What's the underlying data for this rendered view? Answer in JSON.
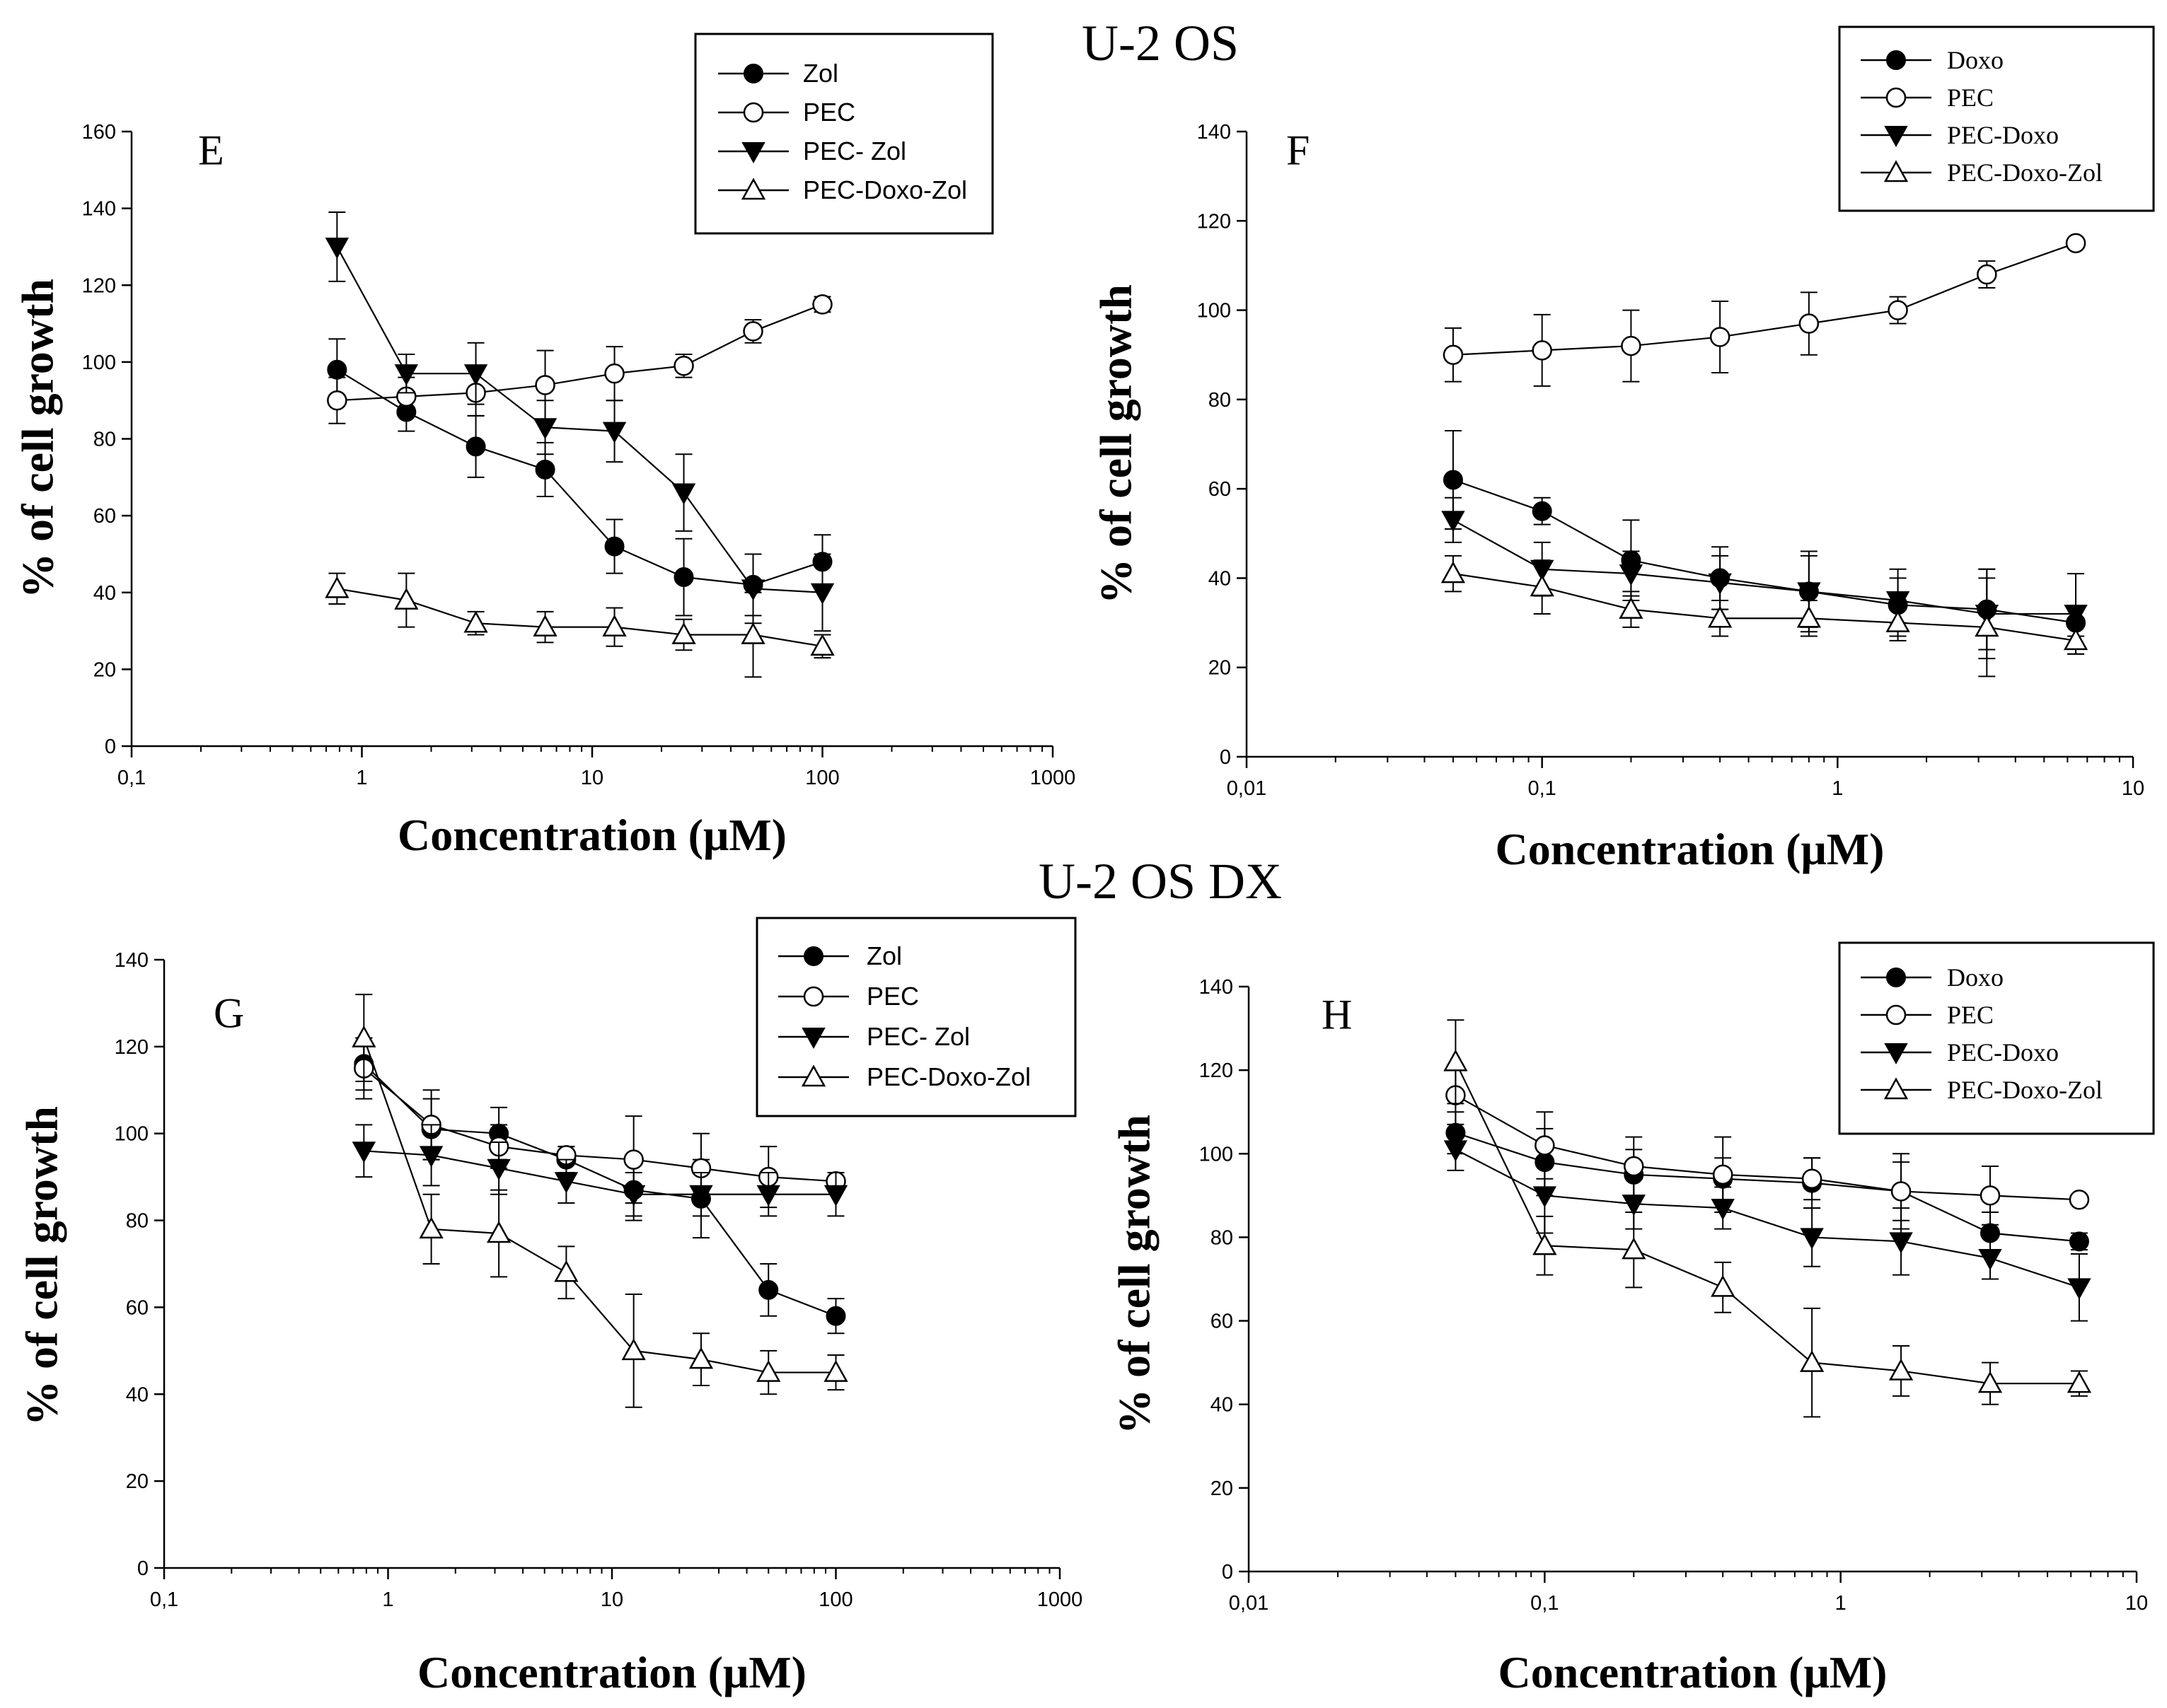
{
  "titles": {
    "top": "U-2 OS",
    "bottom": "U-2 OS DX"
  },
  "chart_data": [
    {
      "id": "E",
      "type": "line",
      "panel_label": "E",
      "xscale": "log",
      "xlabel": "Concentration (μM)",
      "ylabel": "% of cell growth",
      "xlim": [
        0.1,
        1000
      ],
      "ylim": [
        0,
        160
      ],
      "xticks": [
        0.1,
        1,
        10,
        100,
        1000
      ],
      "xtick_labels": [
        "0,1",
        "1",
        "10",
        "100",
        "1000"
      ],
      "yticks": [
        0,
        20,
        40,
        60,
        80,
        100,
        120,
        140,
        160
      ],
      "ytick_labels": [
        "0",
        "20",
        "40",
        "60",
        "80",
        "100",
        "120",
        "140",
        "160"
      ],
      "legend_position": "top-center",
      "legend_style": "sans",
      "series": [
        {
          "name": "Zol",
          "marker": "circle-filled",
          "x": [
            0.78,
            1.56,
            3.125,
            6.25,
            12.5,
            25,
            50,
            100
          ],
          "y": [
            98,
            87,
            78,
            72,
            52,
            44,
            42,
            48
          ],
          "err": [
            8,
            5,
            8,
            7,
            7,
            10,
            8,
            7
          ]
        },
        {
          "name": "PEC",
          "marker": "circle-open",
          "x": [
            0.78,
            1.56,
            3.125,
            6.25,
            12.5,
            25,
            50,
            100
          ],
          "y": [
            90,
            91,
            92,
            94,
            97,
            99,
            108,
            115
          ],
          "err": [
            6,
            5,
            6,
            9,
            7,
            3,
            3,
            2
          ]
        },
        {
          "name": "PEC- Zol",
          "marker": "triangle-down-filled",
          "x": [
            0.78,
            1.56,
            3.125,
            6.25,
            12.5,
            25,
            50,
            100
          ],
          "y": [
            130,
            97,
            97,
            83,
            82,
            66,
            41,
            40
          ],
          "err": [
            9,
            5,
            8,
            7,
            8,
            10,
            9,
            10
          ]
        },
        {
          "name": "PEC-Doxo-Zol",
          "marker": "triangle-up-open",
          "x": [
            0.78,
            1.56,
            3.125,
            6.25,
            12.5,
            25,
            50,
            100
          ],
          "y": [
            41,
            38,
            32,
            31,
            31,
            29,
            29,
            26
          ],
          "err": [
            4,
            7,
            3,
            4,
            5,
            4,
            11,
            3
          ]
        }
      ]
    },
    {
      "id": "F",
      "type": "line",
      "panel_label": "F",
      "xscale": "log",
      "xlabel": "Concentration (μM)",
      "ylabel": "% of cell growth",
      "xlim": [
        0.01,
        10
      ],
      "ylim": [
        0,
        140
      ],
      "xticks": [
        0.01,
        0.1,
        1,
        10
      ],
      "xtick_labels": [
        "0,01",
        "0,1",
        "1",
        "10"
      ],
      "yticks": [
        0,
        20,
        40,
        60,
        80,
        100,
        120,
        140
      ],
      "ytick_labels": [
        "0",
        "20",
        "40",
        "60",
        "80",
        "100",
        "120",
        "140"
      ],
      "legend_position": "top-right",
      "legend_style": "serif",
      "series": [
        {
          "name": "Doxo",
          "marker": "circle-filled",
          "x": [
            0.05,
            0.1,
            0.2,
            0.4,
            0.8,
            1.6,
            3.2,
            6.4
          ],
          "y": [
            62,
            55,
            44,
            40,
            37,
            34,
            33,
            30
          ],
          "err": [
            11,
            3,
            9,
            7,
            9,
            8,
            9,
            3
          ]
        },
        {
          "name": "PEC",
          "marker": "circle-open",
          "x": [
            0.05,
            0.1,
            0.2,
            0.4,
            0.8,
            1.6,
            3.2,
            6.4
          ],
          "y": [
            90,
            91,
            92,
            94,
            97,
            100,
            108,
            115
          ],
          "err": [
            6,
            8,
            8,
            8,
            7,
            3,
            3,
            1
          ]
        },
        {
          "name": "PEC-Doxo",
          "marker": "triangle-down-filled",
          "x": [
            0.05,
            0.1,
            0.2,
            0.4,
            0.8,
            1.6,
            3.2,
            6.4
          ],
          "y": [
            53,
            42,
            41,
            39,
            37,
            35,
            32,
            32
          ],
          "err": [
            5,
            6,
            5,
            6,
            8,
            5,
            10,
            9
          ]
        },
        {
          "name": "PEC-Doxo-Zol",
          "marker": "triangle-up-open",
          "x": [
            0.05,
            0.1,
            0.2,
            0.4,
            0.8,
            1.6,
            3.2,
            6.4
          ],
          "y": [
            41,
            38,
            33,
            31,
            31,
            30,
            29,
            26
          ],
          "err": [
            4,
            6,
            4,
            4,
            4,
            3,
            11,
            3
          ]
        }
      ]
    },
    {
      "id": "G",
      "type": "line",
      "panel_label": "G",
      "xscale": "log",
      "xlabel": "Concentration (μM)",
      "ylabel": "% of cell growth",
      "xlim": [
        0.1,
        1000
      ],
      "ylim": [
        0,
        140
      ],
      "xticks": [
        0.1,
        1,
        10,
        100,
        1000
      ],
      "xtick_labels": [
        "0,1",
        "1",
        "10",
        "100",
        "1000"
      ],
      "yticks": [
        0,
        20,
        40,
        60,
        80,
        100,
        120,
        140
      ],
      "ytick_labels": [
        "0",
        "20",
        "40",
        "60",
        "80",
        "100",
        "120",
        "140"
      ],
      "legend_position": "top-right",
      "legend_style": "sans",
      "series": [
        {
          "name": "Zol",
          "marker": "circle-filled",
          "x": [
            0.78,
            1.56,
            3.125,
            6.25,
            12.5,
            25,
            50,
            100
          ],
          "y": [
            116,
            101,
            100,
            94,
            87,
            85,
            64,
            58
          ],
          "err": [
            6,
            7,
            6,
            3,
            7,
            9,
            6,
            4
          ]
        },
        {
          "name": "PEC",
          "marker": "circle-open",
          "x": [
            0.78,
            1.56,
            3.125,
            6.25,
            12.5,
            25,
            50,
            100
          ],
          "y": [
            115,
            102,
            97,
            95,
            94,
            92,
            90,
            89
          ],
          "err": [
            7,
            8,
            5,
            2,
            10,
            8,
            7,
            2
          ]
        },
        {
          "name": "PEC- Zol",
          "marker": "triangle-down-filled",
          "x": [
            0.78,
            1.56,
            3.125,
            6.25,
            12.5,
            25,
            50,
            100
          ],
          "y": [
            96,
            95,
            92,
            89,
            86,
            86,
            86,
            86
          ],
          "err": [
            6,
            7,
            6,
            5,
            5,
            5,
            5,
            5
          ]
        },
        {
          "name": "PEC-Doxo-Zol",
          "marker": "triangle-up-open",
          "x": [
            0.78,
            1.56,
            3.125,
            6.25,
            12.5,
            25,
            50,
            100
          ],
          "y": [
            122,
            78,
            77,
            68,
            50,
            48,
            45,
            45
          ],
          "err": [
            10,
            8,
            10,
            6,
            13,
            6,
            5,
            4
          ]
        }
      ]
    },
    {
      "id": "H",
      "type": "line",
      "panel_label": "H",
      "xscale": "log",
      "xlabel": "Concentration (μM)",
      "ylabel": "% of cell growth",
      "xlim": [
        0.01,
        10
      ],
      "ylim": [
        0,
        140
      ],
      "xticks": [
        0.01,
        0.1,
        1,
        10
      ],
      "xtick_labels": [
        "0,01",
        "0,1",
        "1",
        "10"
      ],
      "yticks": [
        0,
        20,
        40,
        60,
        80,
        100,
        120,
        140
      ],
      "ytick_labels": [
        "0",
        "20",
        "40",
        "60",
        "80",
        "100",
        "120",
        "140"
      ],
      "legend_position": "top-right",
      "legend_style": "serif",
      "series": [
        {
          "name": "Doxo",
          "marker": "circle-filled",
          "x": [
            0.05,
            0.1,
            0.2,
            0.4,
            0.8,
            1.6,
            3.2,
            6.4
          ],
          "y": [
            105,
            98,
            95,
            94,
            93,
            91,
            81,
            79
          ],
          "err": [
            5,
            8,
            6,
            5,
            6,
            7,
            5,
            2
          ]
        },
        {
          "name": "PEC",
          "marker": "circle-open",
          "x": [
            0.05,
            0.1,
            0.2,
            0.4,
            0.8,
            1.6,
            3.2,
            6.4
          ],
          "y": [
            114,
            102,
            97,
            95,
            94,
            91,
            90,
            89
          ],
          "err": [
            7,
            8,
            7,
            9,
            5,
            9,
            7,
            1
          ]
        },
        {
          "name": "PEC-Doxo",
          "marker": "triangle-down-filled",
          "x": [
            0.05,
            0.1,
            0.2,
            0.4,
            0.8,
            1.6,
            3.2,
            6.4
          ],
          "y": [
            101,
            90,
            88,
            87,
            80,
            79,
            75,
            68
          ],
          "err": [
            5,
            9,
            6,
            5,
            7,
            8,
            5,
            8
          ]
        },
        {
          "name": "PEC-Doxo-Zol",
          "marker": "triangle-up-open",
          "x": [
            0.05,
            0.1,
            0.2,
            0.4,
            0.8,
            1.6,
            3.2,
            6.4
          ],
          "y": [
            122,
            78,
            77,
            68,
            50,
            48,
            45,
            45
          ],
          "err": [
            10,
            7,
            9,
            6,
            13,
            6,
            5,
            3
          ]
        }
      ]
    }
  ]
}
